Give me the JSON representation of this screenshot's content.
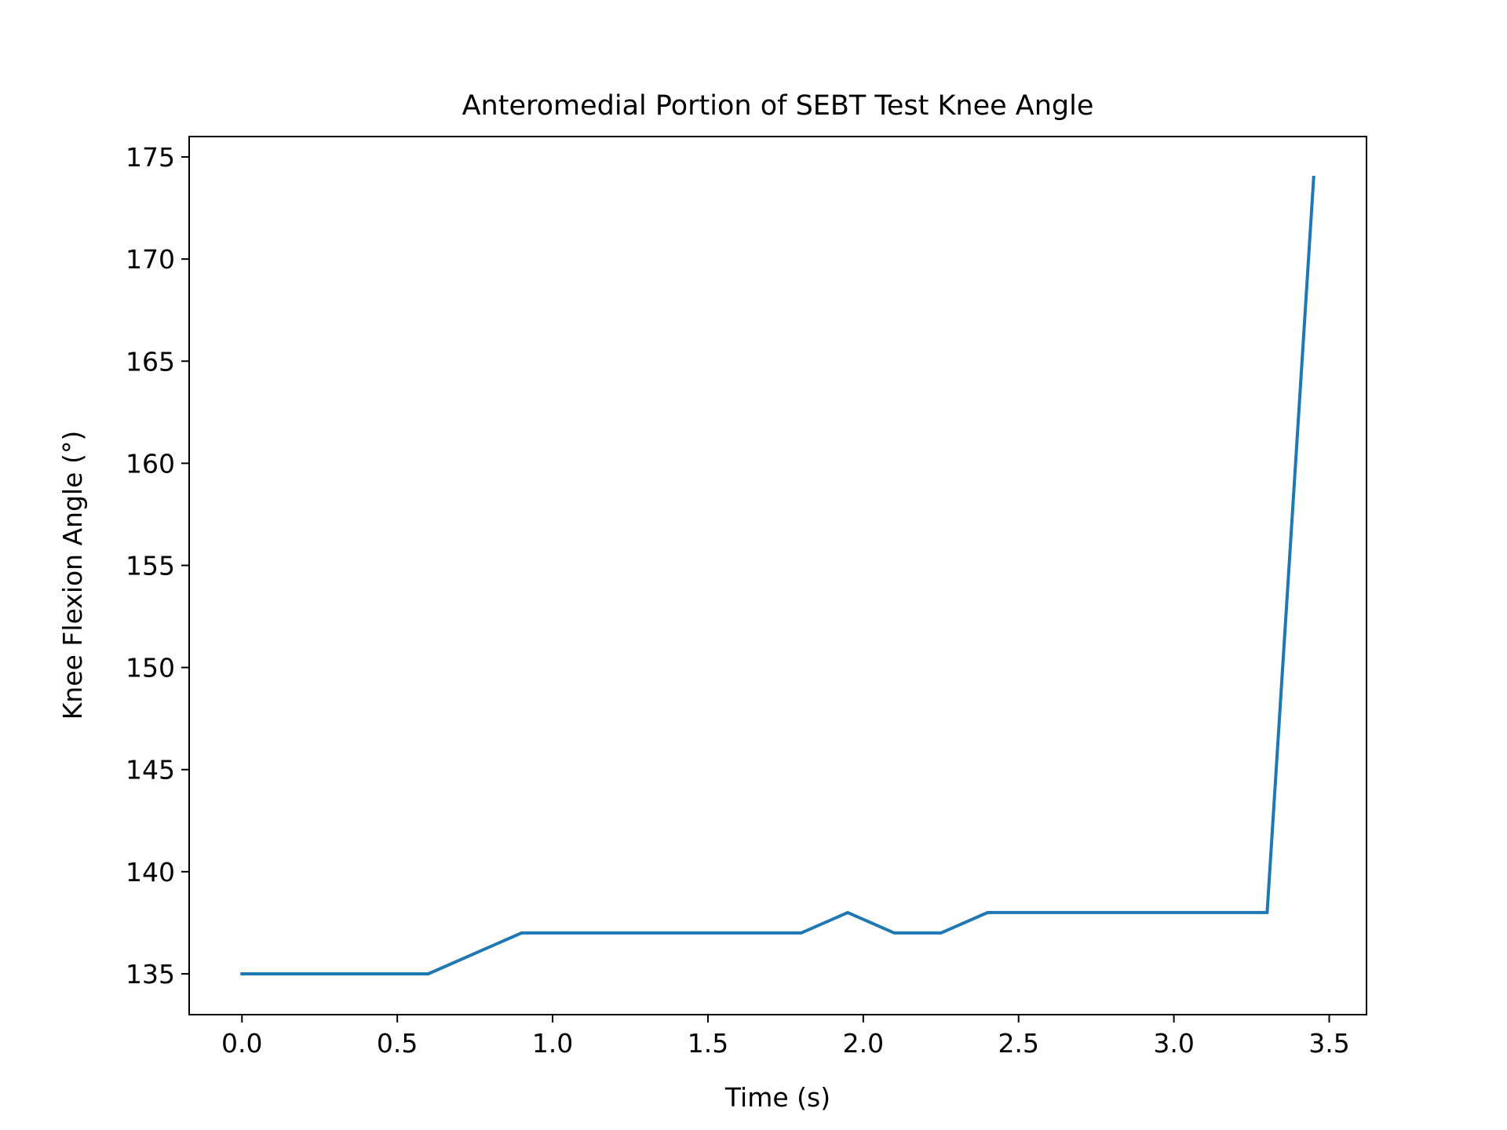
{
  "chart_data": {
    "type": "line",
    "title": "Anteromedial Portion of SEBT Test Knee Angle",
    "xlabel": "Time (s)",
    "ylabel": "Knee Flexion Angle (°)",
    "xlim": [
      -0.17,
      3.62
    ],
    "ylim": [
      133.0,
      176.0
    ],
    "x_ticks": [
      "0.0",
      "0.5",
      "1.0",
      "1.5",
      "2.0",
      "2.5",
      "3.0",
      "3.5"
    ],
    "x_tick_values": [
      0.0,
      0.5,
      1.0,
      1.5,
      2.0,
      2.5,
      3.0,
      3.5
    ],
    "y_ticks": [
      "135",
      "140",
      "145",
      "150",
      "155",
      "160",
      "165",
      "170",
      "175"
    ],
    "y_tick_values": [
      135,
      140,
      145,
      150,
      155,
      160,
      165,
      170,
      175
    ],
    "grid": false,
    "series": [
      {
        "color": "#1f77b4",
        "x": [
          0.0,
          0.15,
          0.3,
          0.45,
          0.6,
          0.75,
          0.9,
          1.05,
          1.2,
          1.35,
          1.5,
          1.65,
          1.8,
          1.95,
          2.1,
          2.25,
          2.4,
          2.55,
          2.7,
          2.85,
          3.0,
          3.15,
          3.3,
          3.45
        ],
        "y": [
          135,
          135,
          135,
          135,
          135,
          136,
          137,
          137,
          137,
          137,
          137,
          137,
          137,
          138,
          137,
          137,
          138,
          138,
          138,
          138,
          138,
          138,
          138,
          174
        ]
      }
    ]
  }
}
